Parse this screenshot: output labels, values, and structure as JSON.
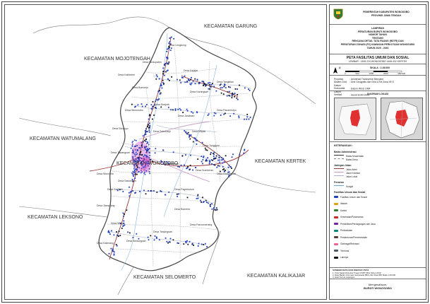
{
  "colors": {
    "district_fill": "#ffffff",
    "outside_fill": "#ffffff",
    "boundary": "#555555",
    "road_arterial": "#9b3b3b",
    "road_collector": "#c8a0c8",
    "road_local": "#aab4c8",
    "river": "#6fa8dc",
    "facility_blue": "#1f3fbf",
    "facility_black": "#111111",
    "urban": "#c63bbd",
    "inset_highlight": "#e03030"
  },
  "map": {
    "neighbors": [
      {
        "label": "KECAMATAN GARUNG"
      },
      {
        "label": "KECAMATAN MOJOTENGAH"
      },
      {
        "label": "KECAMATAN WATUMALANG"
      },
      {
        "label": "KECAMATAN KERTEK"
      },
      {
        "label": "KECAMATAN LEKSONO"
      },
      {
        "label": "KECAMATAN SELOMERTO"
      },
      {
        "label": "KECAMATAN KALIKAJAR"
      }
    ],
    "center_label": "KECAMATAN WONOSOBO",
    "villages": [
      "Desa Lengkong",
      "Desa Sindupaten",
      "Desa Kalibeber",
      "Desa Kejajar",
      "Desa Bumirejo",
      "Desa Karangsari",
      "Desa Wonosobo",
      "Desa Jaraksari",
      "Desa Sidojoyo",
      "Desa Mlipak",
      "Desa Tawangsari",
      "Desa Kejiwan",
      "Desa Wonolelo",
      "Desa Sumberan",
      "Desa Sambek",
      "Desa Pagerkukuh",
      "Desa Jlamprang",
      "Desa Bomerto",
      "Desa Wilayu",
      "Desa Sindangsari",
      "Desa Kalierang",
      "Desa Tanjungsari",
      "Desa Pancurwening",
      "Desa Kedungsari",
      "Desa Tunggoro",
      "Desa Sukoharjo",
      "Desa Pacarmulyo",
      "Desa Tangkilan",
      "Desa Bonjrek",
      "Desa Sawangan"
    ]
  },
  "title_block": {
    "gov_line1": "PEMERINTAH KABUPATEN WONOSOBO",
    "gov_line2": "PROVINSI JAWA TENGAH",
    "lampiran": "LAMPIRAN",
    "reg1": "PERATURAN BUPATI WONOSOBO",
    "reg2": "NOMOR     TAHUN",
    "tentang": "TENTANG",
    "reg3": "RENCANA DETAIL TATA RUANG (RDTR) DAN",
    "reg4": "PERATURAN ZONASI (PZ) KAWASAN PERKOTAAN WONOSOBO",
    "reg5": "TAHUN 2020 - 2040",
    "map_title": "PETA FASILITAS UMUM DAN SOSIAL",
    "sheet": "LEMBAR : 1408-224 WONOSOBO   1408-432 KERTEK",
    "scale_label": "SKALA : 1:26.000",
    "scale_ticks": [
      "0",
      "500",
      "1000",
      "2000"
    ],
    "unit": "METER",
    "north": "U",
    "proj": [
      {
        "k": "Proyeksi",
        "v": ": Universal Transverse Mercator"
      },
      {
        "k": "Sistem Grid",
        "v": ": Grid Geografis dan Grid UTM Zona 49 S"
      },
      {
        "k": "Datum Horizontal",
        "v": ": Datum WGS 1984"
      },
      {
        "k": "Datum Vertikal",
        "v": ": Geoid EGM 2008"
      }
    ],
    "diagram_title": "DIAGRAM LOKASI",
    "keterangan": "KETERANGAN :",
    "admin_title": "Batas Administrasi",
    "admin_items": [
      "Batas Kecamatan",
      "Batas Desa"
    ],
    "road_title": "Jaringan Jalan",
    "road_items": [
      "Jalan Arteri",
      "Jalan Kolektor",
      "Jalan Lokal"
    ],
    "water_title": "Perairan",
    "water_items": [
      "Sungai"
    ],
    "fac_title": "Fasilitas Umum dan Sosial",
    "fac_items": [
      "Fasilitas Umum dan Sosial",
      "Ibadah",
      "Kantor",
      "Kesehatan/Puskesmas",
      "Pendidikan/Perdagangan dan Jasa",
      "Peribadatan",
      "Perkantoran/Pemerintahan",
      "Olahraga/Rekreasi",
      "Terminal",
      "Lainnya"
    ],
    "sources_title": "SUMBER DATA DAN RIWAYAT PETA",
    "sources": [
      "1. Citra Satelit Resolusi Tinggi (CSRT) BIG Tahun 2019",
      "2. Data Badan Informasi Geospasial (BIG) dan Peta RBI Skala 1:25.000",
      "3. Hasil Survei Lapangan"
    ],
    "mengesahkan": "Mengesahkan,",
    "bupati": "BUPATI WONOSOBO"
  }
}
